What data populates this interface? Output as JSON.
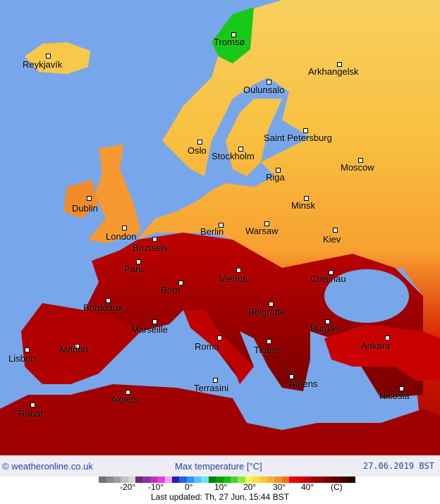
{
  "map": {
    "title": "Max temperature [°C]",
    "date": "27.06.2019 BST",
    "credit": "© weatheronline.co.uk",
    "colors": {
      "sea": "#78a6ea",
      "hot": "#c80000",
      "very_hot": "#8a0000",
      "warm": "#f07800",
      "mild": "#f8b030",
      "cool": "#f8e070",
      "cold": "#10c010"
    },
    "cities": [
      "Reykjavík",
      "Tromsø",
      "Arkhangelsk",
      "Oulunsalo",
      "Saint Petersburg",
      "Oslo",
      "Stockholm",
      "Moscow",
      "Riga",
      "Dublin",
      "Minsk",
      "London",
      "Berlin",
      "Warsaw",
      "Kiev",
      "Brussels",
      "Paris",
      "Vienna",
      "Chisinau",
      "Bern",
      "Bordeaux",
      "Belgrade",
      "Marseille",
      "Burgas",
      "Ankara",
      "Madrid",
      "Roma",
      "Tirana",
      "Lisbon",
      "Athens",
      "Terrasini",
      "Nicosia",
      "Algiers",
      "Rabat"
    ]
  },
  "legend": {
    "ticks": [
      "-20°",
      "-10°",
      "0°",
      "10°",
      "20°",
      "30°",
      "40°",
      "(C)"
    ],
    "colors": [
      "#707070",
      "#888888",
      "#a0a0a0",
      "#c0c0c0",
      "#d8d8d8",
      "#702870",
      "#9030a0",
      "#c030c0",
      "#e040e0",
      "#f8a0f8",
      "#2020c0",
      "#2060f0",
      "#3890f8",
      "#50c0f8",
      "#60e8f8",
      "#008000",
      "#00a000",
      "#10c010",
      "#40d040",
      "#80f040",
      "#f8f840",
      "#f8e040",
      "#f8c838",
      "#f8b030",
      "#f89020",
      "#f07010",
      "#f00000",
      "#d80000",
      "#c00000",
      "#a00000",
      "#880000",
      "#700000",
      "#580000",
      "#400000",
      "#280000"
    ],
    "updated": "Last updated: Th, 27 Jun, 15:44 BST"
  }
}
